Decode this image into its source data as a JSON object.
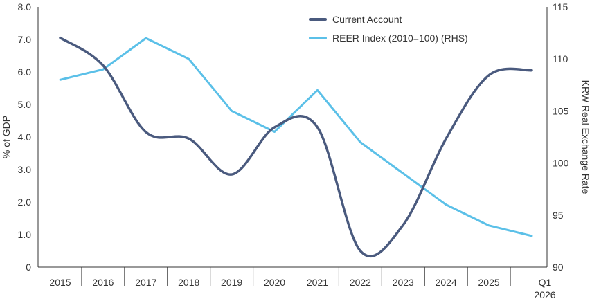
{
  "chart_data": {
    "type": "line",
    "x": [
      "2015",
      "2016",
      "2017",
      "2018",
      "2019",
      "2020",
      "2021",
      "2022",
      "2023",
      "2024",
      "2025",
      "Q1 2026"
    ],
    "x_tick_labels": [
      "2015",
      "2016",
      "2017",
      "2018",
      "2019",
      "2020",
      "2021",
      "2022",
      "2023",
      "2024",
      "2025",
      "Q1",
      "2026"
    ],
    "series": [
      {
        "name": "Current Account",
        "axis": "left",
        "color": "#4a5a7e",
        "values": [
          7.05,
          6.2,
          4.15,
          3.95,
          2.85,
          4.3,
          4.3,
          0.5,
          1.3,
          3.95,
          5.9,
          6.05
        ]
      },
      {
        "name": "REER Index (2010=100) (RHS)",
        "axis": "right",
        "color": "#5bc0e8",
        "values": [
          108,
          109,
          112,
          110,
          105,
          103,
          107,
          102,
          99,
          96,
          94,
          93
        ]
      }
    ],
    "ylabel": "% of GDP",
    "y2label": "KRW Real Exchange Rate",
    "ylim": [
      0,
      8
    ],
    "y2lim": [
      90,
      115
    ],
    "y_ticks": [
      "0",
      "1.0",
      "2.0",
      "3.0",
      "4.0",
      "5.0",
      "6.0",
      "7.0",
      "8.0"
    ],
    "y2_ticks": [
      "90",
      "95",
      "100",
      "105",
      "110",
      "115"
    ],
    "legend_position": "top-center",
    "grid": false
  }
}
